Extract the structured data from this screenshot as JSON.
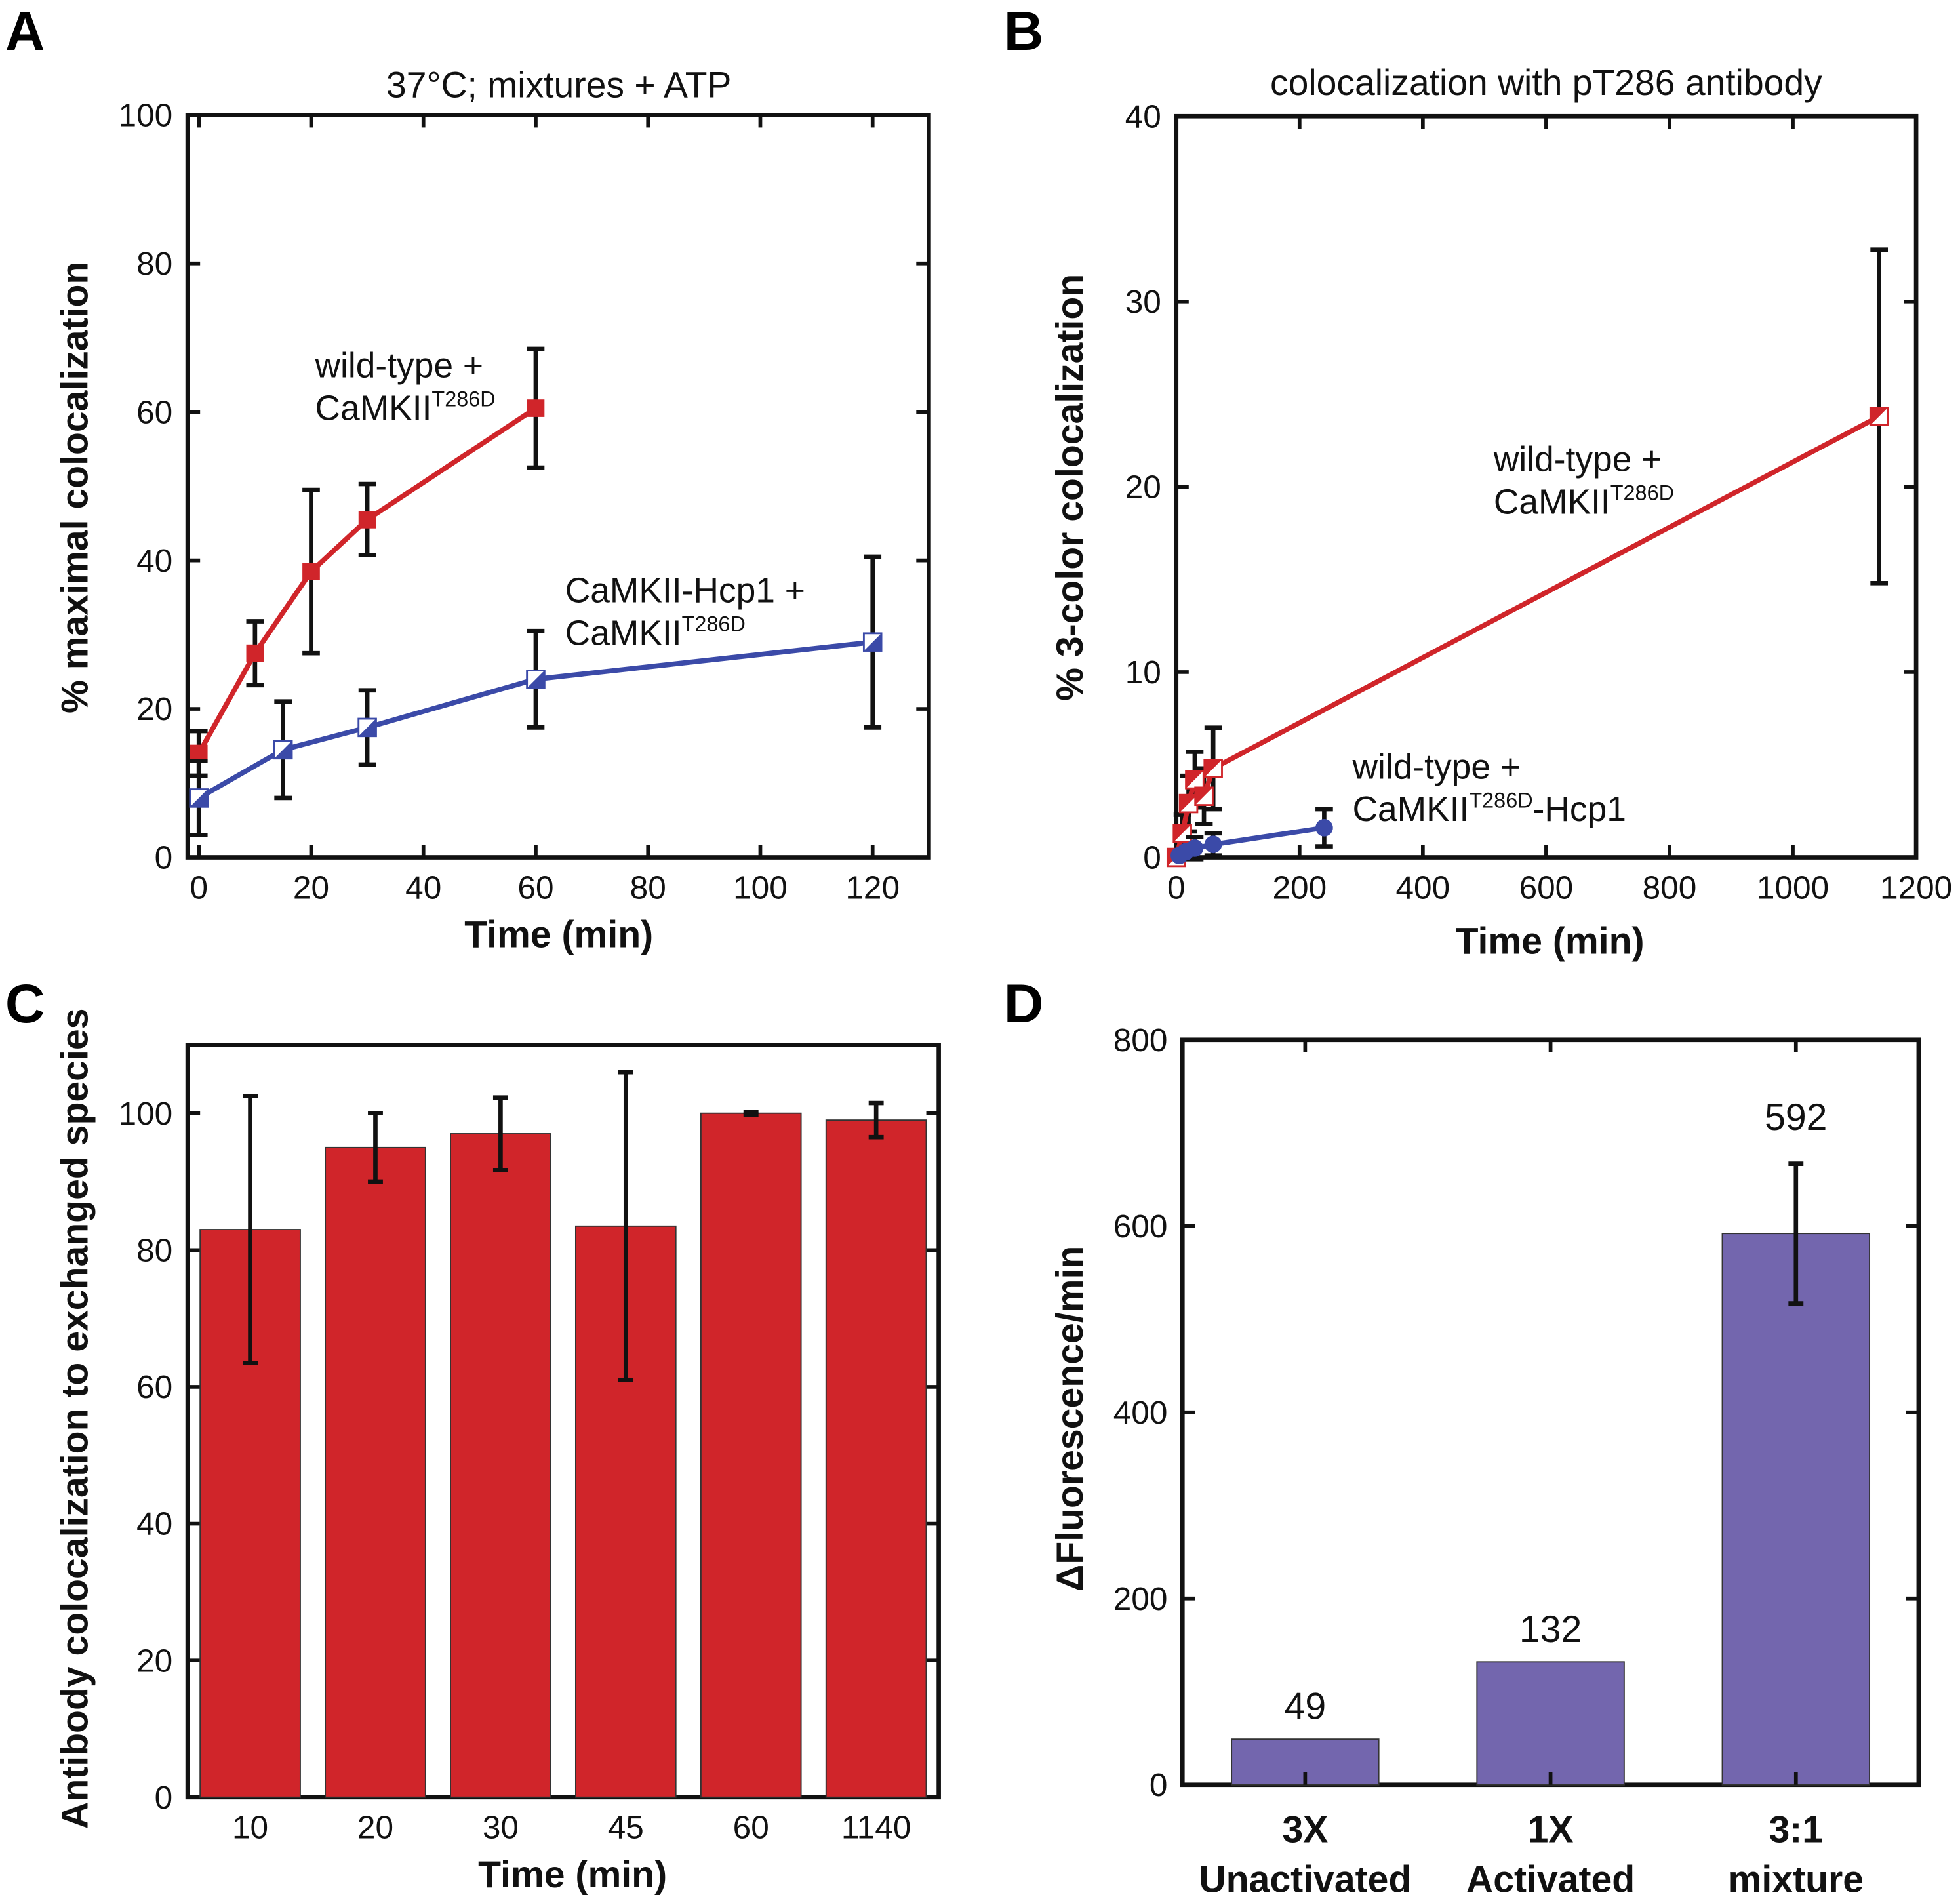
{
  "chart_data": [
    {
      "panel": "A",
      "type": "line",
      "title": "37°C; mixtures + ATP",
      "xlabel": "Time (min)",
      "ylabel": "% maximal colocalization",
      "xlim": [
        -2,
        130
      ],
      "ylim": [
        0,
        100
      ],
      "xticks": [
        0,
        20,
        40,
        60,
        80,
        100,
        120
      ],
      "yticks": [
        0,
        20,
        40,
        60,
        80,
        100
      ],
      "series": [
        {
          "color": "#d0252a",
          "marker": "filled-square",
          "annotation": [
            {
              "text": "wild-type +"
            },
            {
              "text": "CaMKII",
              "sup": "T286D"
            }
          ],
          "x": [
            0,
            10,
            20,
            30,
            60
          ],
          "y": [
            14,
            27.5,
            38.5,
            45.5,
            60.5
          ],
          "err": [
            3,
            4.3,
            11,
            4.8,
            8
          ]
        },
        {
          "color": "#3b4aa8",
          "marker": "half-filled-square",
          "annotation": [
            {
              "text": "CaMKII-Hcp1 +"
            },
            {
              "text": "CaMKII",
              "sup": "T286D"
            }
          ],
          "x": [
            0,
            15,
            30,
            60,
            120
          ],
          "y": [
            8,
            14.5,
            17.5,
            24,
            29
          ],
          "err": [
            5,
            6.5,
            5,
            6.5,
            11.5
          ]
        }
      ]
    },
    {
      "panel": "B",
      "type": "line",
      "title": "colocalization with pT286 antibody",
      "xlabel": "Time (min)",
      "ylabel": "% 3-color colocalization",
      "xlim": [
        0,
        1200
      ],
      "ylim": [
        0,
        40
      ],
      "xticks": [
        0,
        200,
        400,
        600,
        800,
        1000,
        1200
      ],
      "yticks": [
        0,
        10,
        20,
        30,
        40
      ],
      "series": [
        {
          "color": "#d0252a",
          "marker": "half-filled-square",
          "annotation": [
            {
              "text": "wild-type +"
            },
            {
              "text": "CaMKII",
              "sup": "T286D"
            }
          ],
          "x": [
            0,
            10,
            20,
            30,
            45,
            60,
            1140
          ],
          "y": [
            0,
            1.3,
            2.9,
            4.2,
            3.3,
            4.8,
            23.8
          ],
          "err": [
            0,
            1,
            1.5,
            1.5,
            1.5,
            2.2,
            9
          ]
        },
        {
          "color": "#3b4aa8",
          "marker": "circle",
          "annotation": [
            {
              "text": "wild-type +"
            },
            {
              "text": "CaMKII",
              "sup": "T286D",
              "after": "-Hcp1"
            }
          ],
          "x": [
            5,
            15,
            30,
            60,
            240
          ],
          "y": [
            0.1,
            0.3,
            0.5,
            0.7,
            1.6
          ],
          "err": [
            0,
            0,
            0.6,
            0.6,
            1
          ]
        }
      ]
    },
    {
      "panel": "C",
      "type": "bar",
      "xlabel": "Time (min)",
      "ylabel": "Antibody colocalization to exchanged species",
      "ylim": [
        0,
        110
      ],
      "yticks": [
        0,
        20,
        40,
        60,
        80,
        100
      ],
      "color": "#d0252a",
      "categories": [
        "10",
        "20",
        "30",
        "45",
        "60",
        "1140"
      ],
      "values": [
        83,
        95,
        97,
        83.5,
        100,
        99
      ],
      "err": [
        19.5,
        5,
        5.3,
        22.5,
        0.2,
        2.5
      ]
    },
    {
      "panel": "D",
      "type": "bar",
      "ylabel": "ΔFluorescence/min",
      "ylim": [
        0,
        800
      ],
      "yticks": [
        0,
        200,
        400,
        600,
        800
      ],
      "color": "#7366ae",
      "categories": [
        [
          "3X",
          "Unactivated"
        ],
        [
          "1X",
          "Activated"
        ],
        [
          "3:1",
          "mixture"
        ]
      ],
      "values": [
        49,
        132,
        592
      ],
      "data_labels": [
        "49",
        "132",
        "592"
      ],
      "err": [
        0,
        0,
        75
      ]
    }
  ]
}
